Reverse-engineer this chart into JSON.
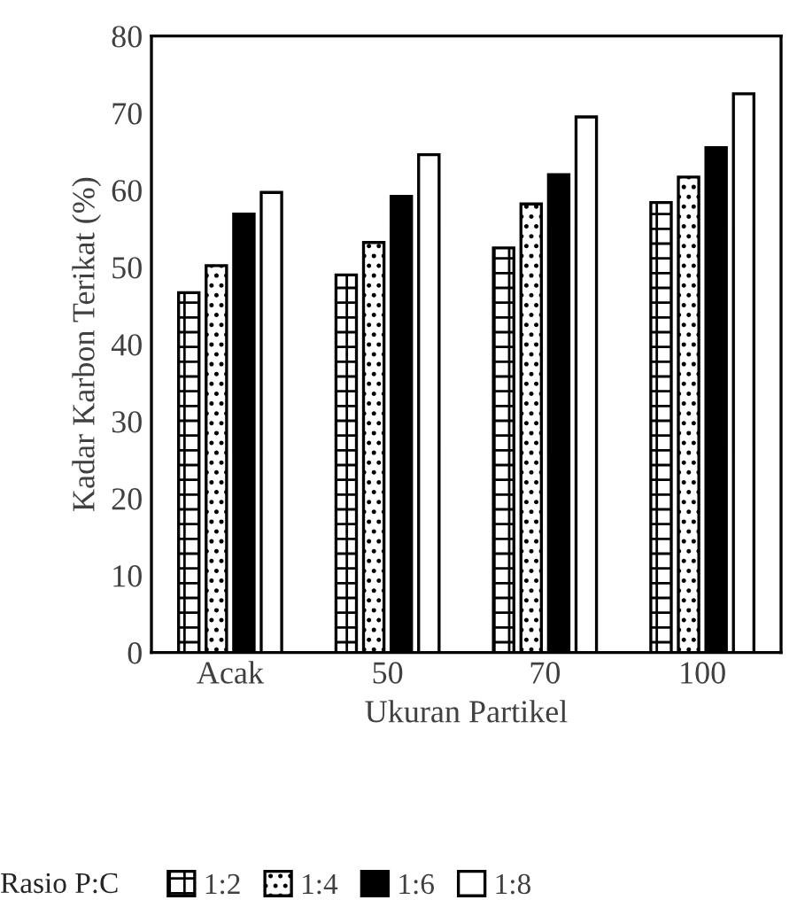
{
  "chart_data": {
    "type": "bar",
    "xlabel": "Ukuran Partikel",
    "ylabel": "Kadar Karbon Terikat (%)",
    "legend_title": "Rasio P:C",
    "categories": [
      "Acak",
      "50",
      "70",
      "100"
    ],
    "series": [
      {
        "name": "1:2",
        "color": "#000000",
        "values": [
          46.7,
          49.0,
          52.5,
          58.4
        ]
      },
      {
        "name": "1:4",
        "color": "#000000",
        "values": [
          50.2,
          53.2,
          58.2,
          61.7
        ]
      },
      {
        "name": "1:6",
        "color": "#000000",
        "values": [
          56.9,
          59.2,
          62.0,
          65.5
        ]
      },
      {
        "name": "1:8",
        "color": "#ffffff",
        "values": [
          59.7,
          64.6,
          69.5,
          72.5
        ]
      }
    ],
    "ylim": [
      0,
      80
    ],
    "yticks": [
      0,
      10,
      20,
      30,
      40,
      50,
      60,
      70,
      80
    ],
    "grid": false,
    "legend": "bottom"
  }
}
